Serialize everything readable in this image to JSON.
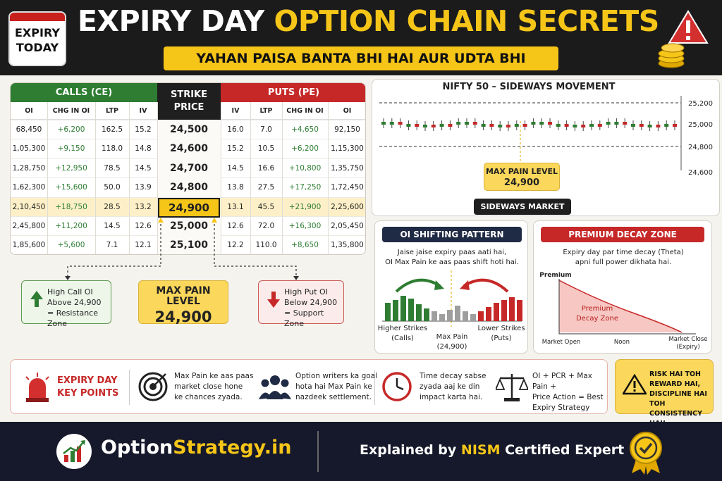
{
  "header": {
    "calendar_line1": "EXPIRY",
    "calendar_line2": "TODAY",
    "title_white": "EXPIRY DAY",
    "title_yellow": "OPTION CHAIN SECRETS",
    "subtitle": "YAHAN PAISA BANTA BHI HAI AUR UDTA BHI"
  },
  "option_chain": {
    "calls_header": "CALLS (CE)",
    "strike_header_1": "STRIKE",
    "strike_header_2": "PRICE",
    "puts_header": "PUTS (PE)",
    "call_cols": [
      "OI",
      "CHG IN OI",
      "LTP",
      "IV"
    ],
    "put_cols": [
      "IV",
      "LTP",
      "CHG IN OI",
      "OI"
    ],
    "rows": [
      {
        "c_oi": "68,450",
        "c_chg": "+6,200",
        "c_ltp": "162.5",
        "c_iv": "15.2",
        "strike": "24,500",
        "p_iv": "16.0",
        "p_ltp": "7.0",
        "p_chg": "+4,650",
        "p_oi": "92,150"
      },
      {
        "c_oi": "1,05,300",
        "c_chg": "+9,150",
        "c_ltp": "118.0",
        "c_iv": "14.8",
        "strike": "24,600",
        "p_iv": "15.2",
        "p_ltp": "10.5",
        "p_chg": "+6,200",
        "p_oi": "1,15,300"
      },
      {
        "c_oi": "1,28,750",
        "c_chg": "+12,950",
        "c_ltp": "78.5",
        "c_iv": "14.5",
        "strike": "24,700",
        "p_iv": "14.5",
        "p_ltp": "16.6",
        "p_chg": "+10,800",
        "p_oi": "1,35,750"
      },
      {
        "c_oi": "1,62,300",
        "c_chg": "+15,600",
        "c_ltp": "50.0",
        "c_iv": "13.9",
        "strike": "24,800",
        "p_iv": "13.8",
        "p_ltp": "27.5",
        "p_chg": "+17,250",
        "p_oi": "1,72,450"
      },
      {
        "c_oi": "2,10,450",
        "c_chg": "+18,750",
        "c_ltp": "28.5",
        "c_iv": "13.2",
        "strike": "24,900",
        "p_iv": "13.1",
        "p_ltp": "45.5",
        "p_chg": "+21,900",
        "p_oi": "2,25,600"
      },
      {
        "c_oi": "2,45,800",
        "c_chg": "+11,200",
        "c_ltp": "14.5",
        "c_iv": "12.6",
        "strike": "25,000",
        "p_iv": "12.6",
        "p_ltp": "72.0",
        "p_chg": "+16,300",
        "p_oi": "2,05,450"
      },
      {
        "c_oi": "1,85,600",
        "c_chg": "+5,600",
        "c_ltp": "7.1",
        "c_iv": "12.1",
        "strike": "25,100",
        "p_iv": "12.2",
        "p_ltp": "110.0",
        "p_chg": "+8,650",
        "p_oi": "1,35,800"
      }
    ]
  },
  "call_box": {
    "line1": "High Call OI",
    "line2": "Above 24,900",
    "line3": "= Resistance Zone"
  },
  "max_pain_box": {
    "line1": "MAX PAIN LEVEL",
    "line2": "24,900"
  },
  "put_box": {
    "line1": "High Put OI",
    "line2": "Below 24,900",
    "line3": "= Support Zone"
  },
  "nifty_chart": {
    "title": "NIFTY 50 – SIDEWAYS MOVEMENT",
    "ticks": [
      "25,200",
      "25,000",
      "24,800",
      "24,600"
    ],
    "max_pain_line1": "MAX PAIN LEVEL",
    "max_pain_line2": "24,900",
    "sideways_label": "SIDEWAYS MARKET"
  },
  "oi_shift": {
    "title": "OI SHIFTING PATTERN",
    "desc1": "Jaise jaise expiry paas aati hai,",
    "desc2": "OI Max Pain ke aas paas shift hoti hai.",
    "left_label1": "Higher Strikes",
    "left_label2": "(Calls)",
    "mid_label1": "Max Pain",
    "mid_label2": "(24,900)",
    "right_label1": "Lower Strikes",
    "right_label2": "(Puts)"
  },
  "decay": {
    "title": "PREMIUM DECAY ZONE",
    "desc1": "Expiry day par time decay (Theta)",
    "desc2": "apni full power dikhata hai.",
    "ylabel": "Premium",
    "zone1": "Premium",
    "zone2": "Decay Zone",
    "x1": "Market Open",
    "x2": "Noon",
    "x3a": "Market Close",
    "x3b": "(Expiry)"
  },
  "key_points": {
    "title1": "EXPIRY DAY",
    "title2": "KEY POINTS",
    "p1": [
      "Max Pain ke aas paas",
      "market close hone",
      "ke chances zyada."
    ],
    "p2": [
      "Option writers ka goal",
      "hota hai Max Pain ke",
      "nazdeek settlement."
    ],
    "p3": [
      "Time decay sabse",
      "zyada aaj ke din",
      "impact karta hai."
    ],
    "p4": [
      "OI + PCR + Max Pain +",
      "Price Action = Best",
      "Expiry Strategy"
    ]
  },
  "risk": {
    "l1": "RISK HAI TOH",
    "l2": "REWARD HAI,",
    "l3": "DISCIPLINE HAI TOH",
    "l4": "CONSISTENCY HAI!"
  },
  "footer": {
    "brand_a": "Option",
    "brand_b": "Strategy.in",
    "expl_a": "Explained by ",
    "expl_b": "NISM",
    "expl_c": " Certified Expert"
  },
  "colors": {
    "call_green": "#2e7d32",
    "put_red": "#c62828",
    "accent_yellow": "#f5c518",
    "dark": "#1b1b1b"
  }
}
